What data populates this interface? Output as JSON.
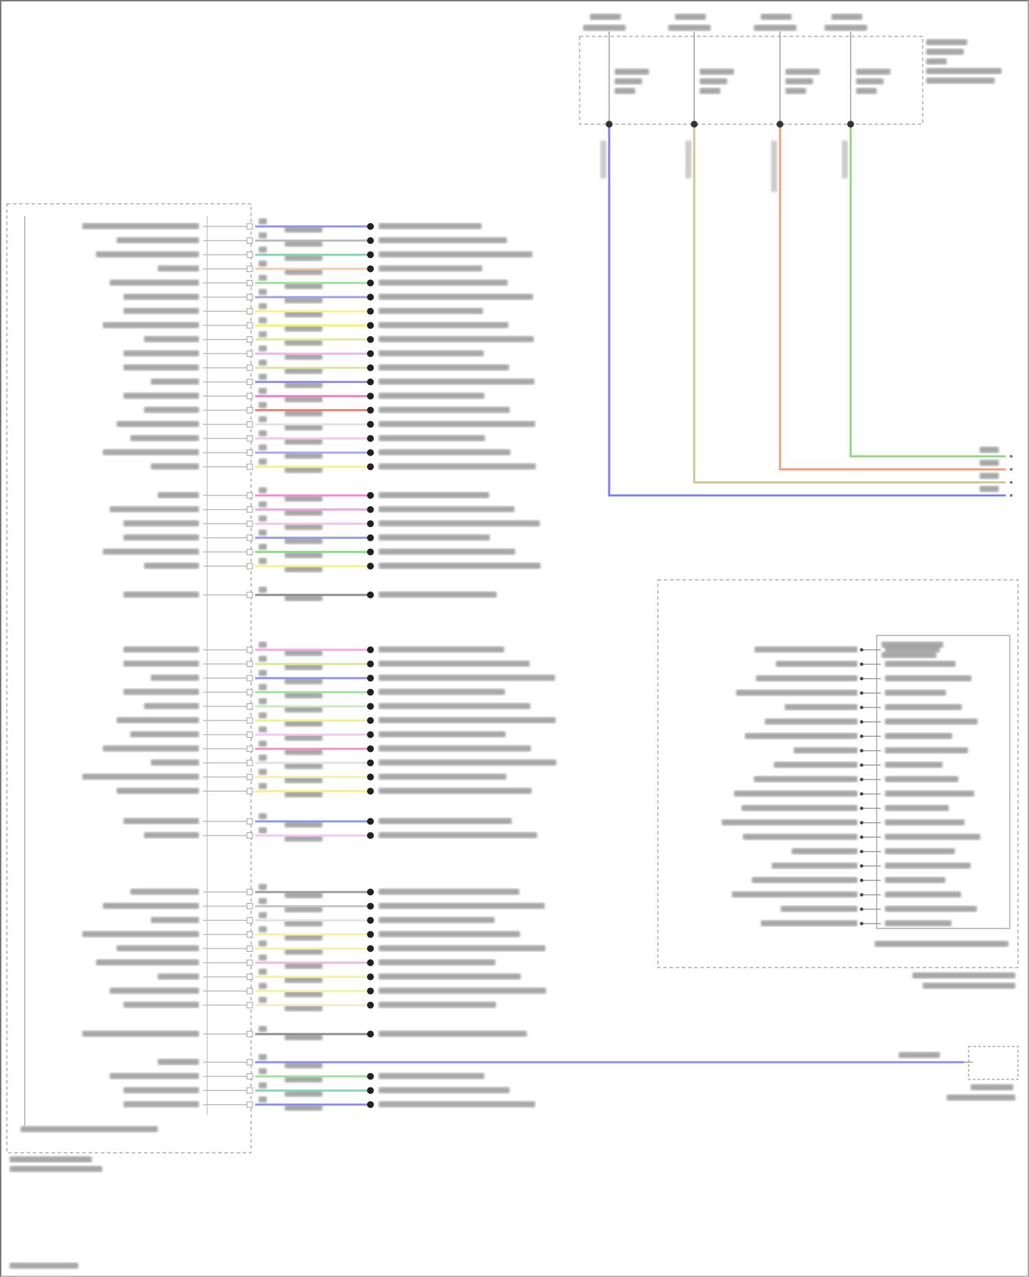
{
  "diagram": {
    "fuse_block": {
      "wires": [
        {
          "color": "#7c7cf2"
        },
        {
          "color": "#c9c68f"
        },
        {
          "color": "#f39a7a"
        },
        {
          "color": "#8fd67f"
        }
      ]
    },
    "left_module": {
      "groups": [
        {
          "wires": [
            "#8e8ef4",
            "#b8b8b8",
            "#86d4b0",
            "#f7caa4",
            "#9ee39a",
            "#9c9cf2",
            "#f2f28e",
            "#f1f466",
            "#dcec9a",
            "#f2b4e4",
            "#d8e89c",
            "#8a8af2",
            "#f078c4",
            "#f27474",
            "#e2e2e2",
            "#f2c4f2",
            "#a6a6f2",
            "#f2f282"
          ]
        },
        {
          "wires": [
            "#f288d6",
            "#f2a0e0",
            "#f2c4ee",
            "#9494f2",
            "#86dc86",
            "#f2f288"
          ]
        },
        {
          "wires": [
            "#8a8a8a"
          ]
        },
        {
          "wires": [
            "#f2a4f0",
            "#d6ea94",
            "#9090f4",
            "#9ee39a",
            "#c8ecc0",
            "#f2f280",
            "#f2c8f0",
            "#f090c4",
            "#e0e0e0",
            "#f2f2a8",
            "#f2f280"
          ]
        },
        {
          "wires": [
            "#8496f2",
            "#f2c8ee"
          ]
        },
        {
          "wires": [
            "#9a9a9a",
            "#c4c4c4",
            "#e2e2e2",
            "#f2f2a0",
            "#f2f2a0",
            "#f2b4d8",
            "#f2f2a0",
            "#f2f2a0",
            "#f8e8c8"
          ]
        },
        {
          "wires": [
            "#8a8a8a"
          ]
        },
        {
          "wires": [
            "#8a8af4",
            "#9ee39a",
            "#86d4b0",
            "#8a8af4"
          ]
        }
      ]
    },
    "right_module": {
      "pin_count": 20
    }
  }
}
